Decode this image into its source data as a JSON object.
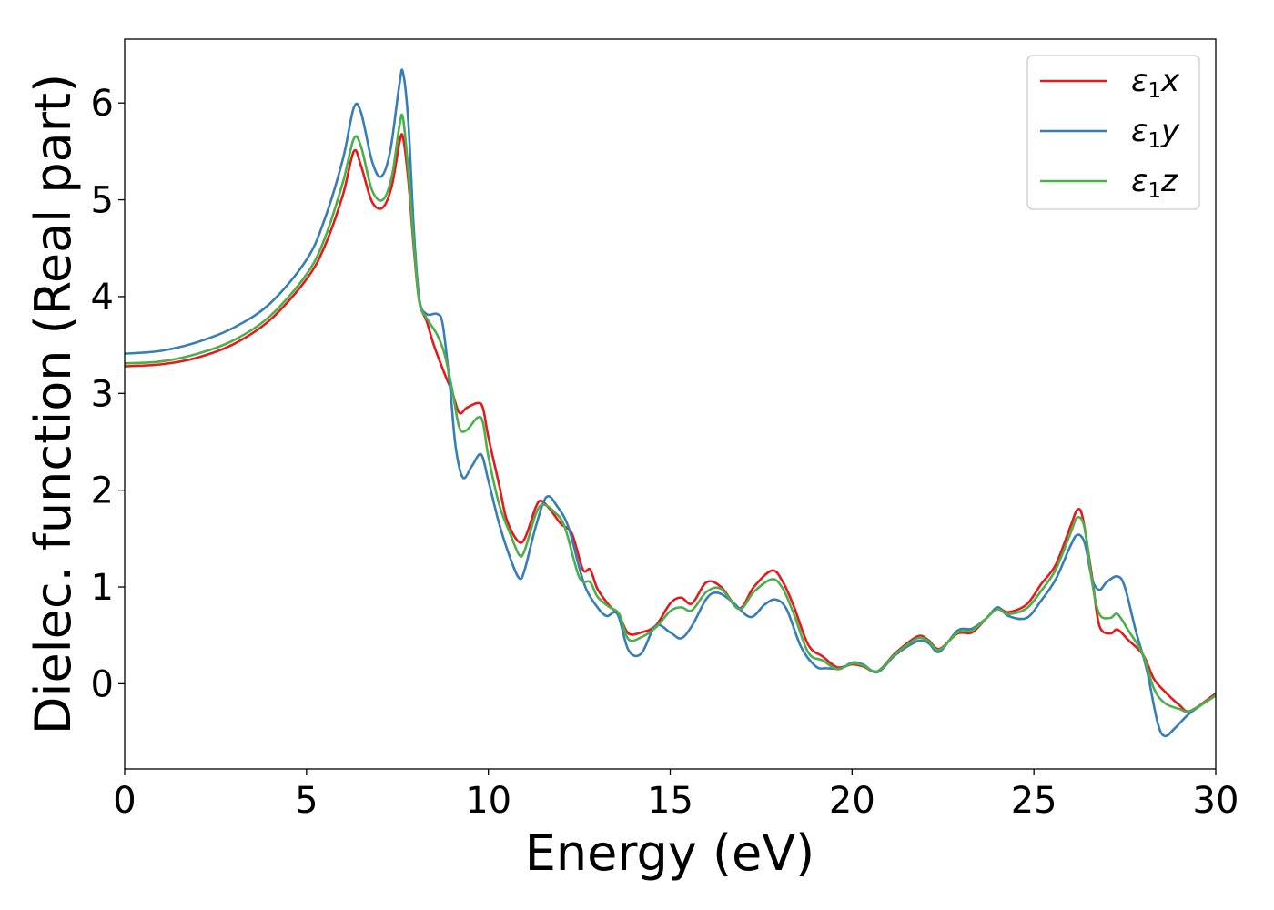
{
  "chart_data": {
    "type": "line",
    "title": "",
    "xlabel": "Energy (eV)",
    "ylabel": "Dielec. function (Real part)",
    "xlim": [
      0,
      30
    ],
    "ylim": [
      -0.88,
      6.66
    ],
    "xticks": [
      0,
      5,
      10,
      15,
      20,
      25,
      30
    ],
    "yticks": [
      0,
      1,
      2,
      3,
      4,
      5,
      6
    ],
    "grid": false,
    "legend_position": "top-right",
    "series": [
      {
        "name": "ε₁x",
        "legend_base": "ε",
        "legend_sub": "1",
        "legend_tail": "x",
        "color": "#e41a1c",
        "points": [
          [
            0,
            3.28
          ],
          [
            1,
            3.3
          ],
          [
            2,
            3.37
          ],
          [
            3,
            3.51
          ],
          [
            4,
            3.76
          ],
          [
            5,
            4.18
          ],
          [
            5.5,
            4.52
          ],
          [
            6,
            5.05
          ],
          [
            6.3,
            5.5
          ],
          [
            6.5,
            5.35
          ],
          [
            6.8,
            4.98
          ],
          [
            7.1,
            4.92
          ],
          [
            7.35,
            5.15
          ],
          [
            7.55,
            5.58
          ],
          [
            7.65,
            5.65
          ],
          [
            7.8,
            5.2
          ],
          [
            7.95,
            4.5
          ],
          [
            8.1,
            3.95
          ],
          [
            8.3,
            3.75
          ],
          [
            8.5,
            3.5
          ],
          [
            8.8,
            3.2
          ],
          [
            9.0,
            3.02
          ],
          [
            9.2,
            2.8
          ],
          [
            9.4,
            2.85
          ],
          [
            9.7,
            2.9
          ],
          [
            9.85,
            2.85
          ],
          [
            10.0,
            2.55
          ],
          [
            10.3,
            2.05
          ],
          [
            10.5,
            1.7
          ],
          [
            10.8,
            1.48
          ],
          [
            11.0,
            1.5
          ],
          [
            11.3,
            1.82
          ],
          [
            11.45,
            1.89
          ],
          [
            11.7,
            1.8
          ],
          [
            12.0,
            1.65
          ],
          [
            12.3,
            1.55
          ],
          [
            12.6,
            1.18
          ],
          [
            12.8,
            1.18
          ],
          [
            13.0,
            0.98
          ],
          [
            13.3,
            0.82
          ],
          [
            13.6,
            0.7
          ],
          [
            13.85,
            0.52
          ],
          [
            14.2,
            0.53
          ],
          [
            14.6,
            0.6
          ],
          [
            15.0,
            0.83
          ],
          [
            15.3,
            0.89
          ],
          [
            15.6,
            0.83
          ],
          [
            16.0,
            1.05
          ],
          [
            16.4,
            1.0
          ],
          [
            16.9,
            0.78
          ],
          [
            17.3,
            1.0
          ],
          [
            17.8,
            1.17
          ],
          [
            18.1,
            1.05
          ],
          [
            18.4,
            0.8
          ],
          [
            18.8,
            0.4
          ],
          [
            19.2,
            0.28
          ],
          [
            19.6,
            0.17
          ],
          [
            20.0,
            0.2
          ],
          [
            20.3,
            0.18
          ],
          [
            20.7,
            0.13
          ],
          [
            21.2,
            0.32
          ],
          [
            21.8,
            0.49
          ],
          [
            22.1,
            0.45
          ],
          [
            22.4,
            0.36
          ],
          [
            22.9,
            0.52
          ],
          [
            23.3,
            0.53
          ],
          [
            23.7,
            0.68
          ],
          [
            24.0,
            0.78
          ],
          [
            24.3,
            0.74
          ],
          [
            24.8,
            0.82
          ],
          [
            25.2,
            1.03
          ],
          [
            25.6,
            1.23
          ],
          [
            26.0,
            1.62
          ],
          [
            26.2,
            1.8
          ],
          [
            26.35,
            1.7
          ],
          [
            26.6,
            1.1
          ],
          [
            26.8,
            0.6
          ],
          [
            27.1,
            0.52
          ],
          [
            27.3,
            0.56
          ],
          [
            27.6,
            0.45
          ],
          [
            28.0,
            0.3
          ],
          [
            28.3,
            0.05
          ],
          [
            28.6,
            -0.08
          ],
          [
            29.0,
            -0.22
          ],
          [
            29.3,
            -0.28
          ],
          [
            30,
            -0.1
          ]
        ]
      },
      {
        "name": "ε₁y",
        "legend_base": "ε",
        "legend_sub": "1",
        "legend_tail": "y",
        "color": "#377eb8",
        "points": [
          [
            0,
            3.41
          ],
          [
            1,
            3.44
          ],
          [
            2,
            3.53
          ],
          [
            3,
            3.68
          ],
          [
            4,
            3.93
          ],
          [
            5,
            4.38
          ],
          [
            5.5,
            4.8
          ],
          [
            6,
            5.42
          ],
          [
            6.3,
            5.95
          ],
          [
            6.5,
            5.9
          ],
          [
            6.8,
            5.4
          ],
          [
            7.05,
            5.24
          ],
          [
            7.3,
            5.5
          ],
          [
            7.55,
            6.18
          ],
          [
            7.65,
            6.32
          ],
          [
            7.8,
            5.8
          ],
          [
            7.95,
            4.7
          ],
          [
            8.1,
            3.98
          ],
          [
            8.3,
            3.82
          ],
          [
            8.6,
            3.82
          ],
          [
            8.75,
            3.7
          ],
          [
            8.95,
            3.05
          ],
          [
            9.1,
            2.45
          ],
          [
            9.3,
            2.13
          ],
          [
            9.55,
            2.25
          ],
          [
            9.8,
            2.37
          ],
          [
            10.0,
            2.1
          ],
          [
            10.3,
            1.65
          ],
          [
            10.6,
            1.3
          ],
          [
            10.85,
            1.09
          ],
          [
            11.0,
            1.18
          ],
          [
            11.3,
            1.62
          ],
          [
            11.6,
            1.93
          ],
          [
            11.9,
            1.83
          ],
          [
            12.2,
            1.62
          ],
          [
            12.5,
            1.2
          ],
          [
            12.7,
            0.97
          ],
          [
            13.0,
            0.79
          ],
          [
            13.25,
            0.7
          ],
          [
            13.55,
            0.72
          ],
          [
            13.85,
            0.35
          ],
          [
            14.2,
            0.31
          ],
          [
            14.6,
            0.6
          ],
          [
            15.0,
            0.53
          ],
          [
            15.3,
            0.47
          ],
          [
            15.6,
            0.6
          ],
          [
            16.0,
            0.88
          ],
          [
            16.3,
            0.94
          ],
          [
            16.7,
            0.85
          ],
          [
            17.2,
            0.69
          ],
          [
            17.6,
            0.82
          ],
          [
            17.9,
            0.87
          ],
          [
            18.2,
            0.77
          ],
          [
            18.6,
            0.38
          ],
          [
            19.0,
            0.18
          ],
          [
            19.3,
            0.16
          ],
          [
            19.7,
            0.16
          ],
          [
            20.0,
            0.22
          ],
          [
            20.3,
            0.2
          ],
          [
            20.7,
            0.12
          ],
          [
            21.2,
            0.3
          ],
          [
            21.8,
            0.44
          ],
          [
            22.1,
            0.42
          ],
          [
            22.4,
            0.33
          ],
          [
            22.9,
            0.55
          ],
          [
            23.3,
            0.57
          ],
          [
            23.7,
            0.68
          ],
          [
            24.0,
            0.79
          ],
          [
            24.3,
            0.7
          ],
          [
            24.8,
            0.68
          ],
          [
            25.2,
            0.86
          ],
          [
            25.6,
            1.08
          ],
          [
            26.0,
            1.42
          ],
          [
            26.2,
            1.54
          ],
          [
            26.4,
            1.45
          ],
          [
            26.6,
            1.08
          ],
          [
            26.8,
            0.97
          ],
          [
            27.0,
            1.05
          ],
          [
            27.3,
            1.11
          ],
          [
            27.5,
            1.0
          ],
          [
            27.8,
            0.55
          ],
          [
            28.1,
            0.15
          ],
          [
            28.4,
            -0.4
          ],
          [
            28.6,
            -0.54
          ],
          [
            28.9,
            -0.45
          ],
          [
            29.3,
            -0.3
          ],
          [
            30,
            -0.12
          ]
        ]
      },
      {
        "name": "ε₁z",
        "legend_base": "ε",
        "legend_sub": "1",
        "legend_tail": "z",
        "color": "#4daf4a",
        "points": [
          [
            0,
            3.31
          ],
          [
            1,
            3.33
          ],
          [
            2,
            3.41
          ],
          [
            3,
            3.55
          ],
          [
            4,
            3.8
          ],
          [
            5,
            4.23
          ],
          [
            5.5,
            4.6
          ],
          [
            6,
            5.18
          ],
          [
            6.3,
            5.63
          ],
          [
            6.5,
            5.55
          ],
          [
            6.8,
            5.1
          ],
          [
            7.1,
            5.0
          ],
          [
            7.35,
            5.25
          ],
          [
            7.55,
            5.75
          ],
          [
            7.65,
            5.85
          ],
          [
            7.8,
            5.3
          ],
          [
            7.95,
            4.55
          ],
          [
            8.1,
            3.95
          ],
          [
            8.3,
            3.78
          ],
          [
            8.6,
            3.6
          ],
          [
            8.8,
            3.4
          ],
          [
            9.0,
            3.05
          ],
          [
            9.2,
            2.65
          ],
          [
            9.4,
            2.62
          ],
          [
            9.7,
            2.75
          ],
          [
            9.85,
            2.7
          ],
          [
            10.0,
            2.35
          ],
          [
            10.3,
            1.85
          ],
          [
            10.6,
            1.55
          ],
          [
            10.85,
            1.33
          ],
          [
            11.0,
            1.38
          ],
          [
            11.3,
            1.75
          ],
          [
            11.5,
            1.85
          ],
          [
            11.8,
            1.78
          ],
          [
            12.1,
            1.62
          ],
          [
            12.5,
            1.1
          ],
          [
            12.8,
            1.05
          ],
          [
            13.0,
            0.9
          ],
          [
            13.3,
            0.8
          ],
          [
            13.6,
            0.72
          ],
          [
            13.85,
            0.46
          ],
          [
            14.2,
            0.48
          ],
          [
            14.6,
            0.58
          ],
          [
            15.0,
            0.75
          ],
          [
            15.3,
            0.79
          ],
          [
            15.6,
            0.76
          ],
          [
            16.0,
            0.95
          ],
          [
            16.4,
            0.98
          ],
          [
            16.9,
            0.77
          ],
          [
            17.3,
            0.95
          ],
          [
            17.8,
            1.08
          ],
          [
            18.1,
            0.98
          ],
          [
            18.4,
            0.72
          ],
          [
            18.8,
            0.32
          ],
          [
            19.2,
            0.24
          ],
          [
            19.6,
            0.15
          ],
          [
            20.0,
            0.21
          ],
          [
            20.3,
            0.19
          ],
          [
            20.7,
            0.13
          ],
          [
            21.2,
            0.31
          ],
          [
            21.8,
            0.47
          ],
          [
            22.1,
            0.44
          ],
          [
            22.4,
            0.35
          ],
          [
            22.9,
            0.53
          ],
          [
            23.3,
            0.55
          ],
          [
            23.7,
            0.68
          ],
          [
            24.0,
            0.77
          ],
          [
            24.3,
            0.72
          ],
          [
            24.8,
            0.78
          ],
          [
            25.2,
            0.96
          ],
          [
            25.6,
            1.18
          ],
          [
            26.0,
            1.55
          ],
          [
            26.2,
            1.72
          ],
          [
            26.4,
            1.6
          ],
          [
            26.6,
            1.05
          ],
          [
            26.8,
            0.72
          ],
          [
            27.1,
            0.68
          ],
          [
            27.3,
            0.72
          ],
          [
            27.6,
            0.55
          ],
          [
            28.0,
            0.3
          ],
          [
            28.3,
            -0.05
          ],
          [
            28.6,
            -0.2
          ],
          [
            29.0,
            -0.26
          ],
          [
            29.3,
            -0.28
          ],
          [
            30,
            -0.12
          ]
        ]
      }
    ]
  }
}
